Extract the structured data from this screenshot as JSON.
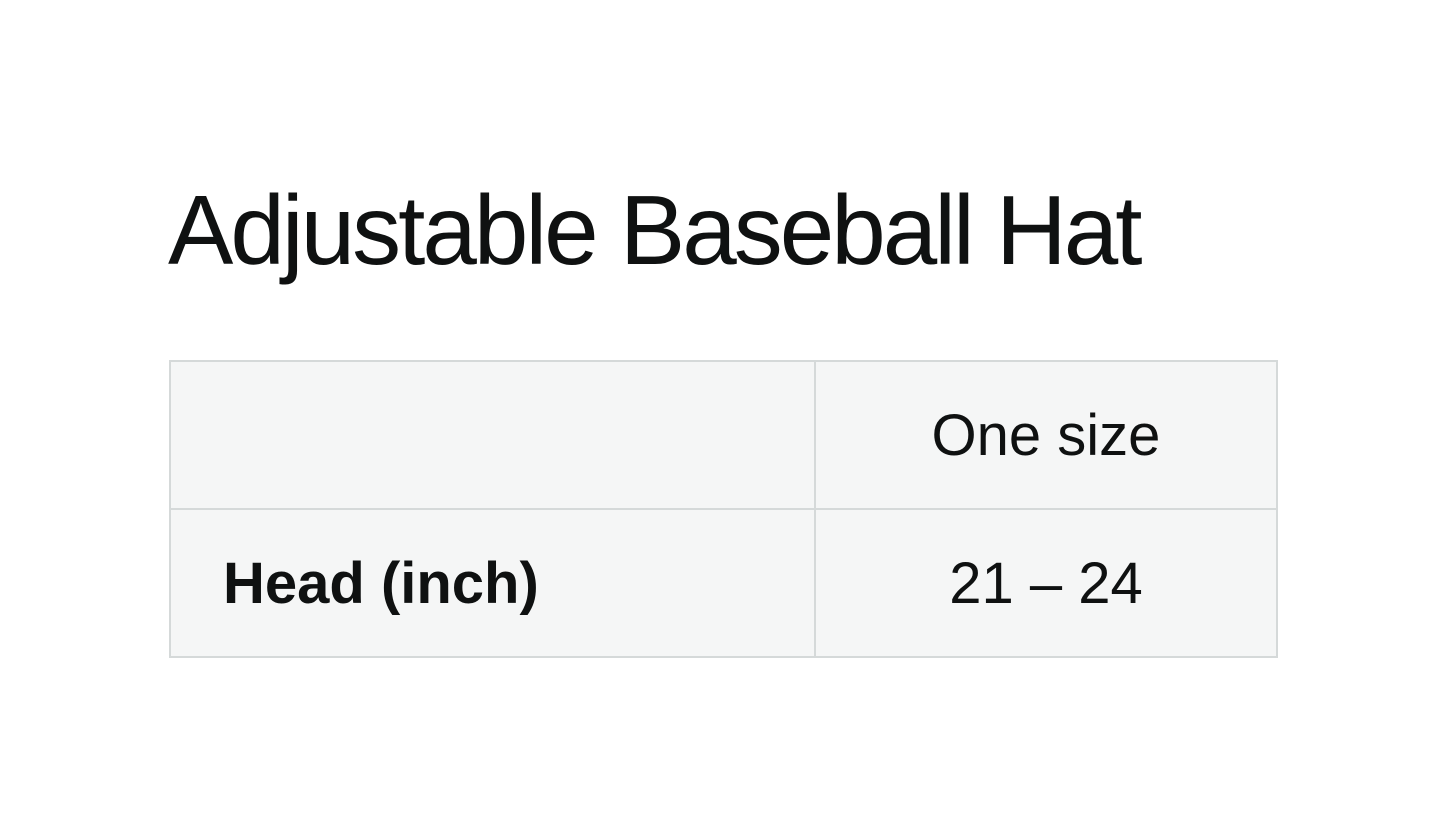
{
  "title": "Adjustable Baseball Hat",
  "size_chart": {
    "columns": [
      "",
      "One size"
    ],
    "rows": [
      {
        "label": "Head (inch)",
        "value": "21 – 24"
      }
    ],
    "colors": {
      "page_bg": "#ffffff",
      "cell_bg": "#f5f6f6",
      "value_bg": "#ffffff",
      "border": "#d5d9d9",
      "text": "#0f1111"
    }
  }
}
